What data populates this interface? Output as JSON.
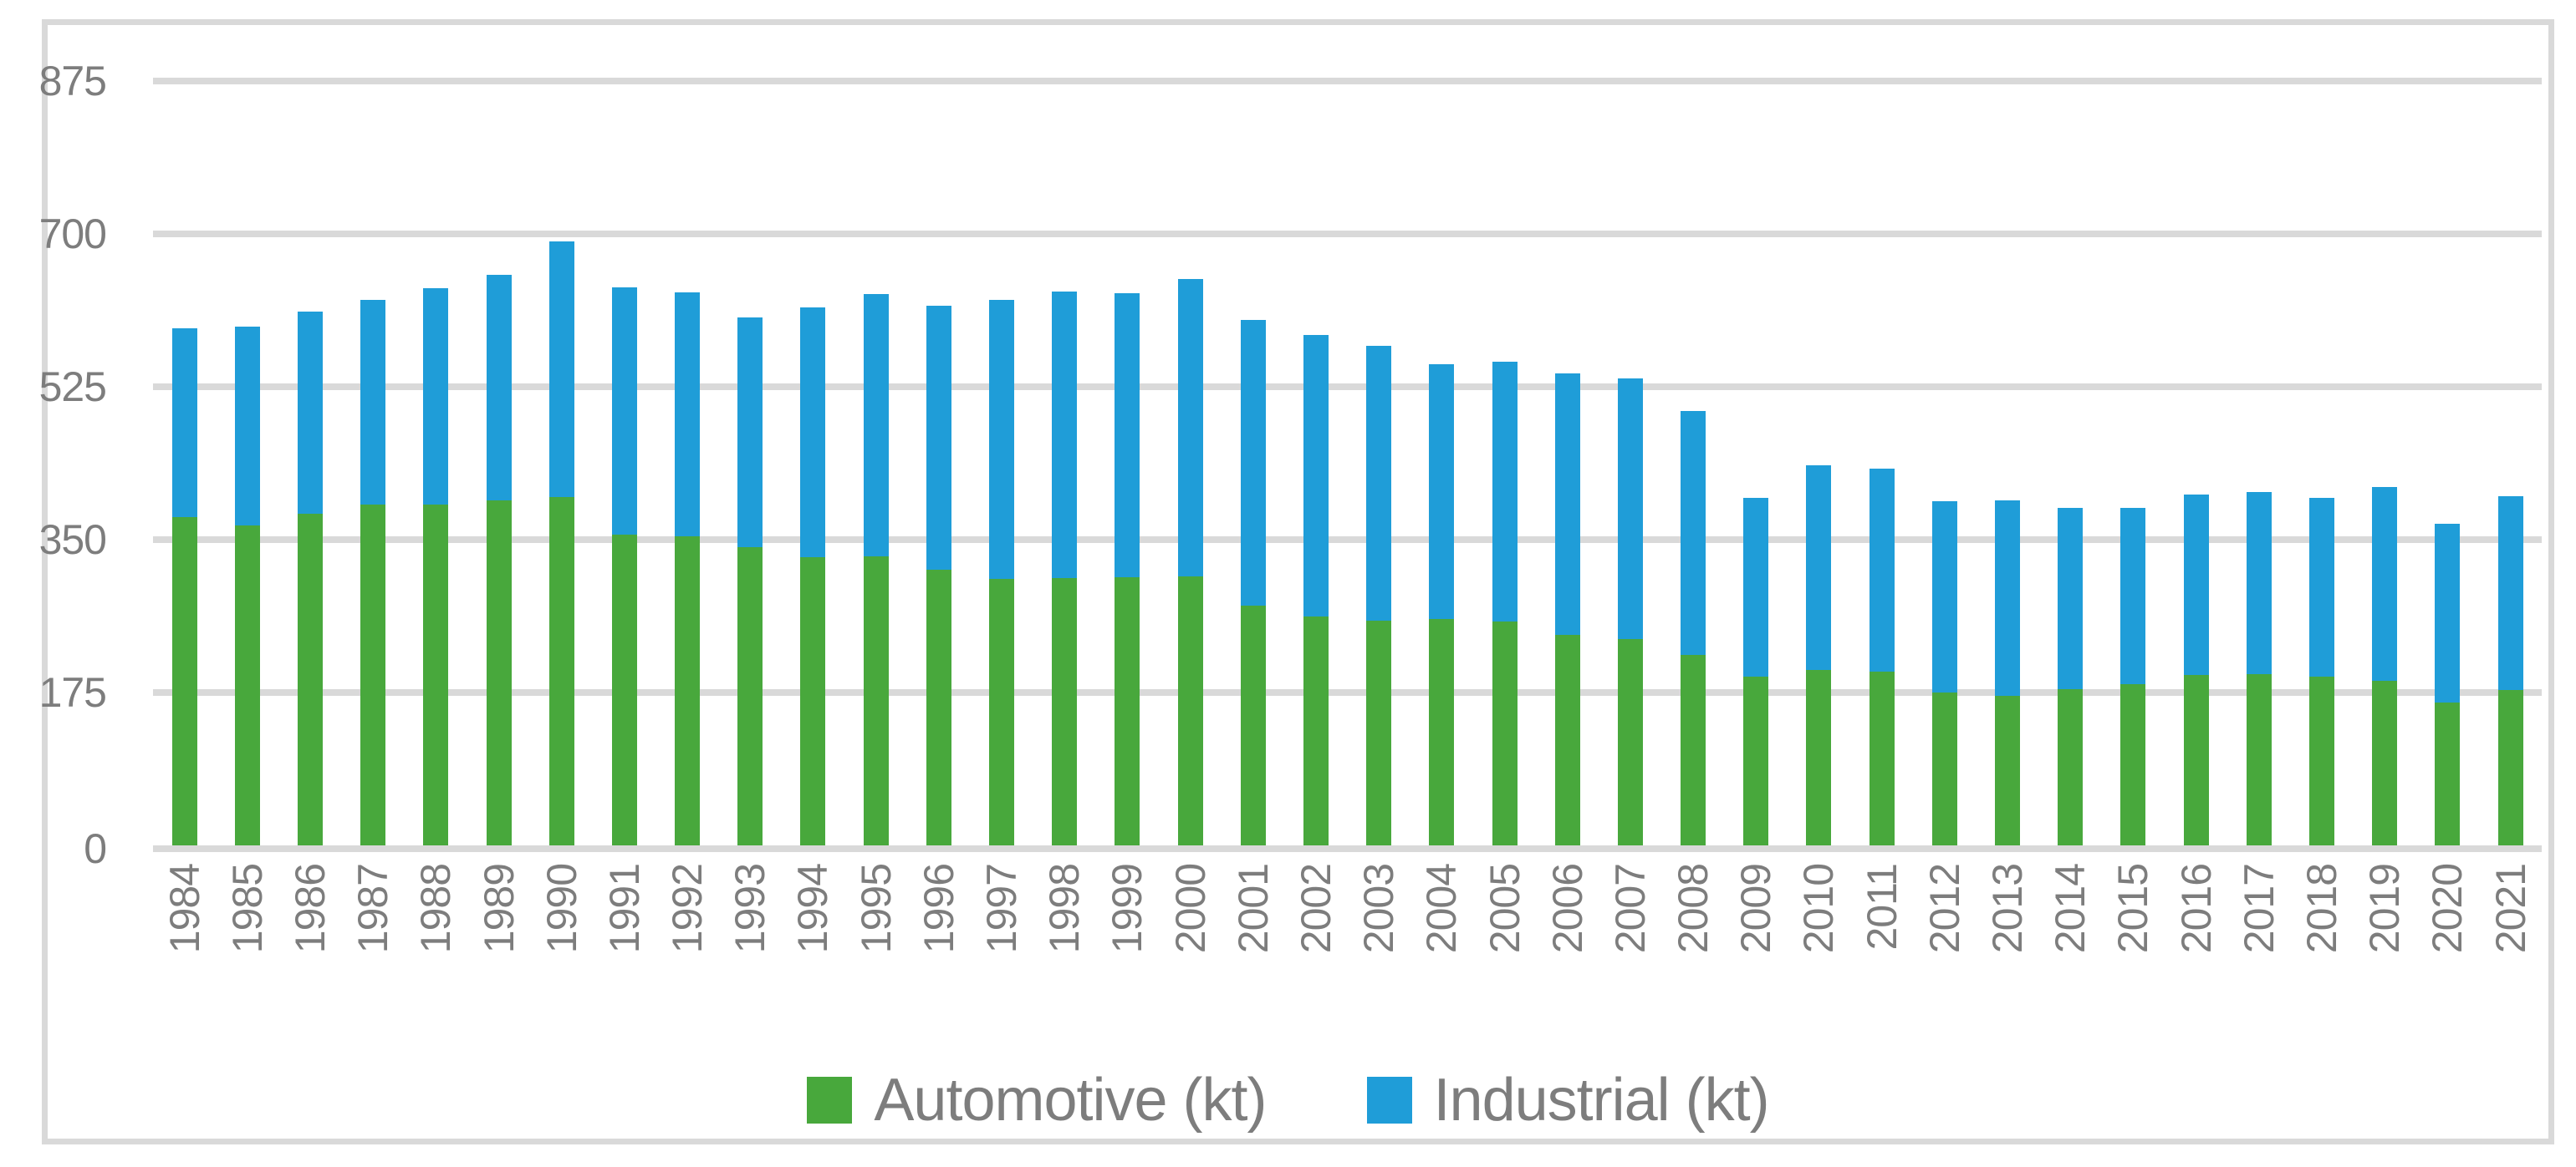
{
  "chart_data": {
    "type": "bar",
    "stacked": true,
    "title": "",
    "xlabel": "",
    "ylabel": "",
    "categories": [
      "1984",
      "1985",
      "1986",
      "1987",
      "1988",
      "1989",
      "1990",
      "1991",
      "1992",
      "1993",
      "1994",
      "1995",
      "1996",
      "1997",
      "1998",
      "1999",
      "2000",
      "2001",
      "2002",
      "2003",
      "2004",
      "2005",
      "2006",
      "2007",
      "2008",
      "2009",
      "2010",
      "2011",
      "2012",
      "2013",
      "2014",
      "2015",
      "2016",
      "2017",
      "2018",
      "2019",
      "2020",
      "2021"
    ],
    "series": [
      {
        "name": "Automotive (kt)",
        "color": "#48a83c",
        "values": [
          376,
          366,
          380,
          390,
          390,
          395,
          399,
          356,
          354,
          341,
          330,
          331,
          316,
          305,
          306,
          307,
          308,
          274,
          262,
          257,
          259,
          256,
          241,
          236,
          218,
          193,
          201,
          199,
          175,
          171,
          179,
          185,
          195,
          196,
          193,
          188,
          164,
          178
        ]
      },
      {
        "name": "Industrial (kt)",
        "color": "#1f9dd8",
        "values": [
          216,
          228,
          231,
          234,
          248,
          258,
          292,
          283,
          279,
          263,
          286,
          300,
          302,
          319,
          328,
          325,
          340,
          328,
          322,
          315,
          292,
          298,
          299,
          299,
          279,
          205,
          234,
          232,
          219,
          224,
          207,
          201,
          207,
          209,
          205,
          222,
          204,
          222
        ]
      }
    ],
    "ylim": [
      0,
      875
    ],
    "yticks": [
      0,
      175,
      350,
      525,
      700,
      875
    ],
    "grid": "horizontal",
    "legend_position": "bottom-center",
    "colors": {
      "gridline": "#d9d9d9",
      "frame": "#d9d9d9",
      "tick_label": "#7d7d7d",
      "background": "#ffffff"
    }
  }
}
